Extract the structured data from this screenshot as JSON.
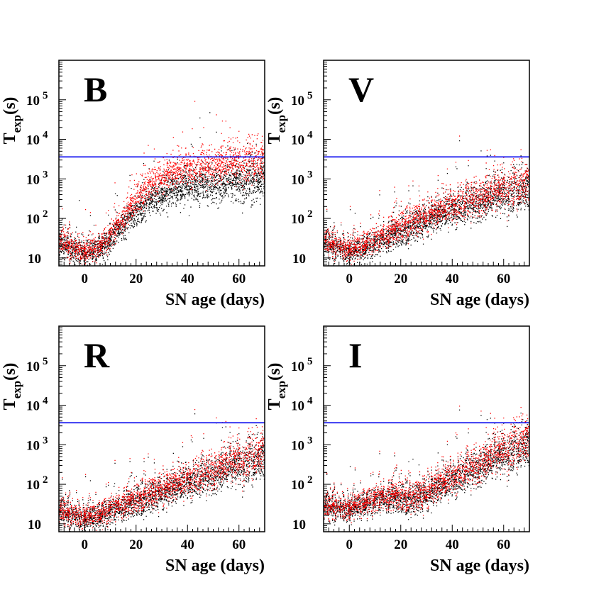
{
  "chart_data": [
    {
      "type": "scatter",
      "title": "B",
      "xlabel": "SN age (days)",
      "ylabel": "T_exp(s)",
      "xlim": [
        -10,
        70
      ],
      "ylim_log10": [
        0.8,
        6.0
      ],
      "x_ticks": [
        0,
        20,
        40,
        60
      ],
      "y_ticks": [
        10,
        100,
        1000,
        10000,
        100000
      ],
      "reference_line_y": 3600,
      "series": [
        {
          "name": "black",
          "color": "#000000",
          "trend_x": [
            -10,
            -5,
            0,
            5,
            10,
            15,
            20,
            25,
            30,
            35,
            40,
            50,
            60,
            70
          ],
          "trend_y": [
            25,
            16,
            13,
            16,
            30,
            70,
            150,
            280,
            400,
            550,
            650,
            800,
            900,
            1000
          ]
        },
        {
          "name": "red",
          "color": "#ff0000",
          "trend_x": [
            -10,
            -5,
            0,
            5,
            10,
            15,
            20,
            25,
            30,
            35,
            40,
            50,
            60,
            70
          ],
          "trend_y": [
            30,
            18,
            15,
            20,
            40,
            110,
            300,
            700,
            1100,
            1500,
            1800,
            2200,
            2500,
            2800
          ]
        }
      ]
    },
    {
      "type": "scatter",
      "title": "V",
      "xlabel": "SN age (days)",
      "ylabel": "T_exp(s)",
      "xlim": [
        -10,
        70
      ],
      "ylim_log10": [
        0.8,
        6.0
      ],
      "x_ticks": [
        0,
        20,
        40,
        60
      ],
      "y_ticks": [
        10,
        100,
        1000,
        10000,
        100000
      ],
      "reference_line_y": 3600,
      "series": [
        {
          "name": "black",
          "color": "#000000",
          "trend_x": [
            -10,
            -5,
            0,
            5,
            10,
            20,
            30,
            40,
            50,
            60,
            70
          ],
          "trend_y": [
            25,
            18,
            15,
            18,
            25,
            45,
            90,
            170,
            260,
            400,
            550
          ]
        },
        {
          "name": "red",
          "color": "#ff0000",
          "trend_x": [
            -10,
            -5,
            0,
            5,
            10,
            20,
            30,
            40,
            50,
            60,
            70
          ],
          "trend_y": [
            28,
            20,
            18,
            22,
            32,
            60,
            120,
            220,
            360,
            550,
            800
          ]
        }
      ]
    },
    {
      "type": "scatter",
      "title": "R",
      "xlabel": "SN age (days)",
      "ylabel": "T_exp(s)",
      "xlim": [
        -10,
        70
      ],
      "ylim_log10": [
        0.8,
        6.0
      ],
      "x_ticks": [
        0,
        20,
        40,
        60
      ],
      "y_ticks": [
        10,
        100,
        1000,
        10000,
        100000
      ],
      "reference_line_y": 3600,
      "series": [
        {
          "name": "black",
          "color": "#000000",
          "trend_x": [
            -10,
            -5,
            0,
            5,
            10,
            20,
            30,
            40,
            50,
            60,
            70
          ],
          "trend_y": [
            22,
            16,
            14,
            16,
            22,
            35,
            60,
            110,
            180,
            300,
            450
          ]
        },
        {
          "name": "red",
          "color": "#ff0000",
          "trend_x": [
            -10,
            -5,
            0,
            5,
            10,
            20,
            30,
            40,
            50,
            60,
            70
          ],
          "trend_y": [
            24,
            18,
            16,
            18,
            26,
            42,
            75,
            140,
            240,
            420,
            700
          ]
        }
      ]
    },
    {
      "type": "scatter",
      "title": "I",
      "xlabel": "SN age (days)",
      "ylabel": "T_exp(s)",
      "xlim": [
        -10,
        70
      ],
      "ylim_log10": [
        0.8,
        6.0
      ],
      "x_ticks": [
        0,
        20,
        40,
        60
      ],
      "y_ticks": [
        10,
        100,
        1000,
        10000,
        100000
      ],
      "reference_line_y": 3600,
      "series": [
        {
          "name": "black",
          "color": "#000000",
          "trend_x": [
            -10,
            -5,
            0,
            5,
            10,
            15,
            20,
            25,
            30,
            40,
            50,
            60,
            70
          ],
          "trend_y": [
            28,
            24,
            25,
            32,
            40,
            45,
            42,
            40,
            55,
            130,
            270,
            550,
            1000
          ]
        },
        {
          "name": "red",
          "color": "#ff0000",
          "trend_x": [
            -10,
            -5,
            0,
            5,
            10,
            15,
            20,
            25,
            30,
            40,
            50,
            60,
            70
          ],
          "trend_y": [
            30,
            26,
            28,
            36,
            46,
            52,
            50,
            48,
            65,
            160,
            350,
            750,
            1400
          ]
        }
      ]
    }
  ]
}
